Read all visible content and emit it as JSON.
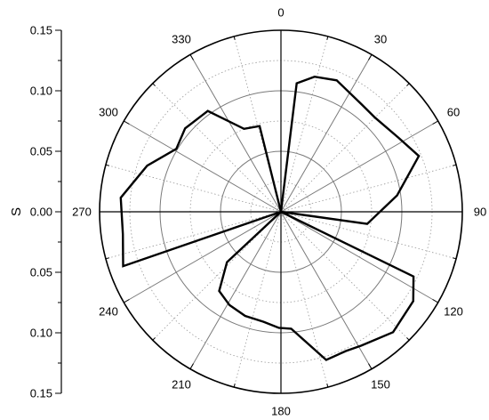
{
  "chart_data": {
    "type": "polar-line",
    "ylabel": "S",
    "radial_range": [
      0,
      0.15
    ],
    "radial_major_ticks": [
      0.15,
      0.1,
      0.05,
      0.0,
      0.05,
      0.1,
      0.15
    ],
    "radial_tick_labels": [
      "0.15",
      "0.10",
      "0.05",
      "0.00",
      "0.05",
      "0.10",
      "0.15"
    ],
    "angle_labels": [
      "0",
      "30",
      "60",
      "90",
      "120",
      "150",
      "180",
      "210",
      "240",
      "270",
      "300",
      "330"
    ],
    "angle_values": [
      0,
      30,
      60,
      90,
      120,
      150,
      180,
      210,
      240,
      270,
      300,
      330
    ],
    "grid": true,
    "series": [
      {
        "points": [
          {
            "angle": 0,
            "r": 0
          },
          {
            "angle": 7,
            "r": 0.107
          },
          {
            "angle": 14,
            "r": 0.115
          },
          {
            "angle": 23,
            "r": 0.118
          },
          {
            "angle": 37,
            "r": 0.111
          },
          {
            "angle": 45,
            "r": 0.11
          },
          {
            "angle": 58,
            "r": 0.115
          },
          {
            "angle": 68,
            "r": 0.123
          },
          {
            "angle": 82,
            "r": 0.097
          },
          {
            "angle": 98,
            "r": 0.072
          },
          {
            "angle": 0,
            "r": 0
          },
          {
            "angle": 116,
            "r": 0.122
          },
          {
            "angle": 124,
            "r": 0.132
          },
          {
            "angle": 137,
            "r": 0.136
          },
          {
            "angle": 149,
            "r": 0.129
          },
          {
            "angle": 155,
            "r": 0.127
          },
          {
            "angle": 163,
            "r": 0.128
          },
          {
            "angle": 175,
            "r": 0.097
          },
          {
            "angle": 181,
            "r": 0.096
          },
          {
            "angle": 189,
            "r": 0.092
          },
          {
            "angle": 199,
            "r": 0.091
          },
          {
            "angle": 209,
            "r": 0.088
          },
          {
            "angle": 218,
            "r": 0.083
          },
          {
            "angle": 227,
            "r": 0.061
          },
          {
            "angle": 0,
            "r": 0
          },
          {
            "angle": 251,
            "r": 0.138
          },
          {
            "angle": 262,
            "r": 0.132
          },
          {
            "angle": 275,
            "r": 0.133
          },
          {
            "angle": 289,
            "r": 0.117
          },
          {
            "angle": 301,
            "r": 0.101
          },
          {
            "angle": 311,
            "r": 0.105
          },
          {
            "angle": 324,
            "r": 0.103
          },
          {
            "angle": 336,
            "r": 0.075
          },
          {
            "angle": 346,
            "r": 0.073
          },
          {
            "angle": 0,
            "r": 0
          }
        ]
      }
    ]
  }
}
